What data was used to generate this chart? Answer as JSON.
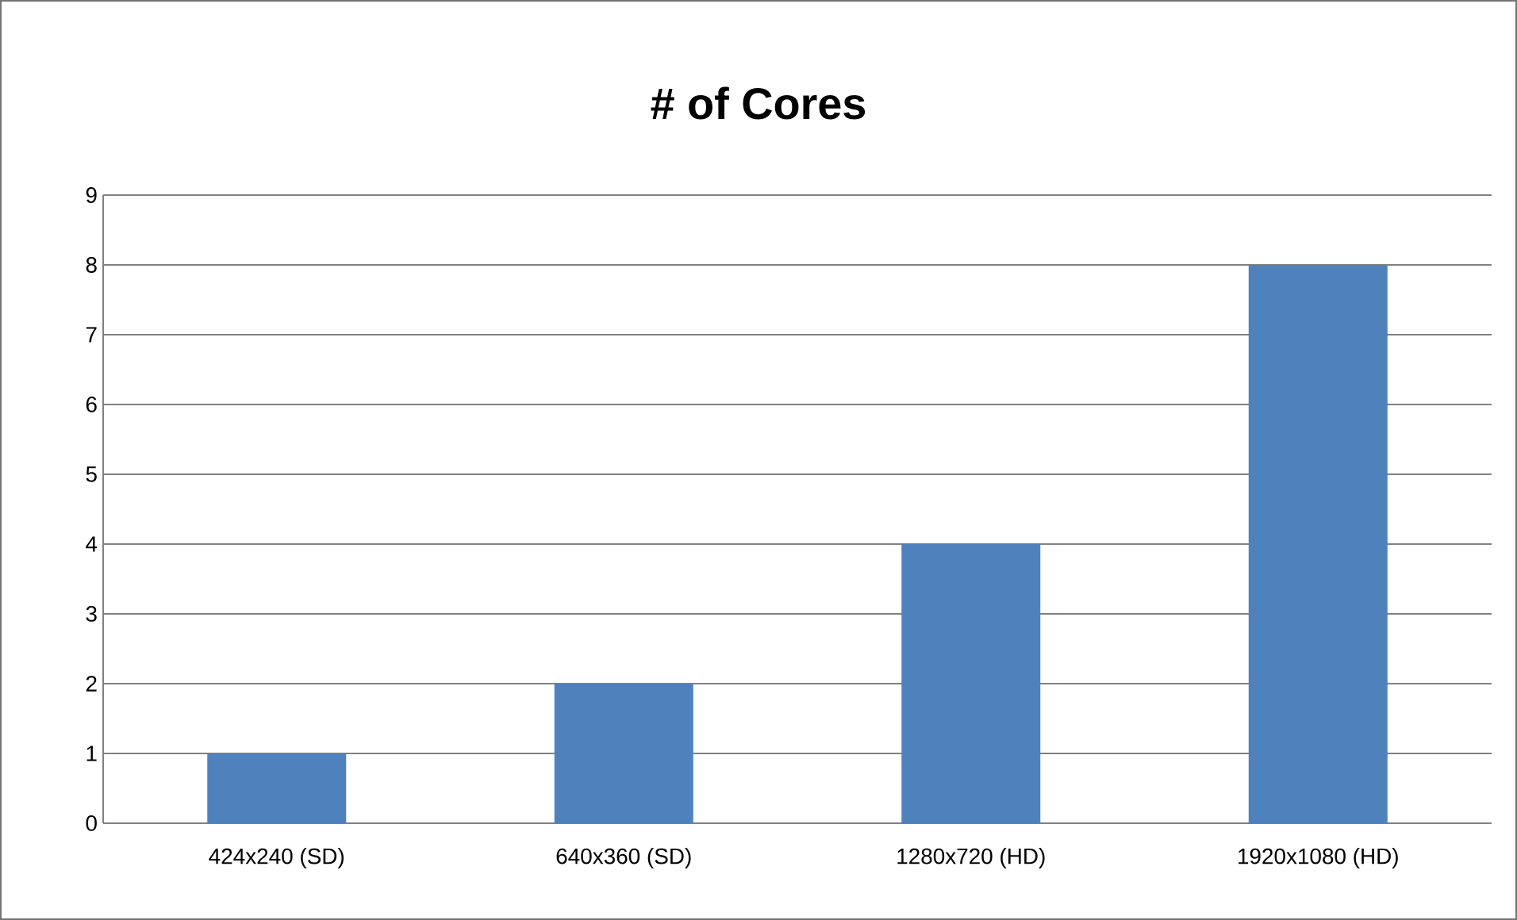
{
  "chart_data": {
    "type": "bar",
    "title": "# of Cores",
    "categories": [
      "424x240 (SD)",
      "640x360 (SD)",
      "1280x720 (HD)",
      "1920x1080 (HD)"
    ],
    "values": [
      1,
      2,
      4,
      8
    ],
    "color": "#4f81bd",
    "ylim": [
      0,
      9
    ],
    "yticks": [
      0,
      1,
      2,
      3,
      4,
      5,
      6,
      7,
      8,
      9
    ],
    "grid": "y"
  }
}
